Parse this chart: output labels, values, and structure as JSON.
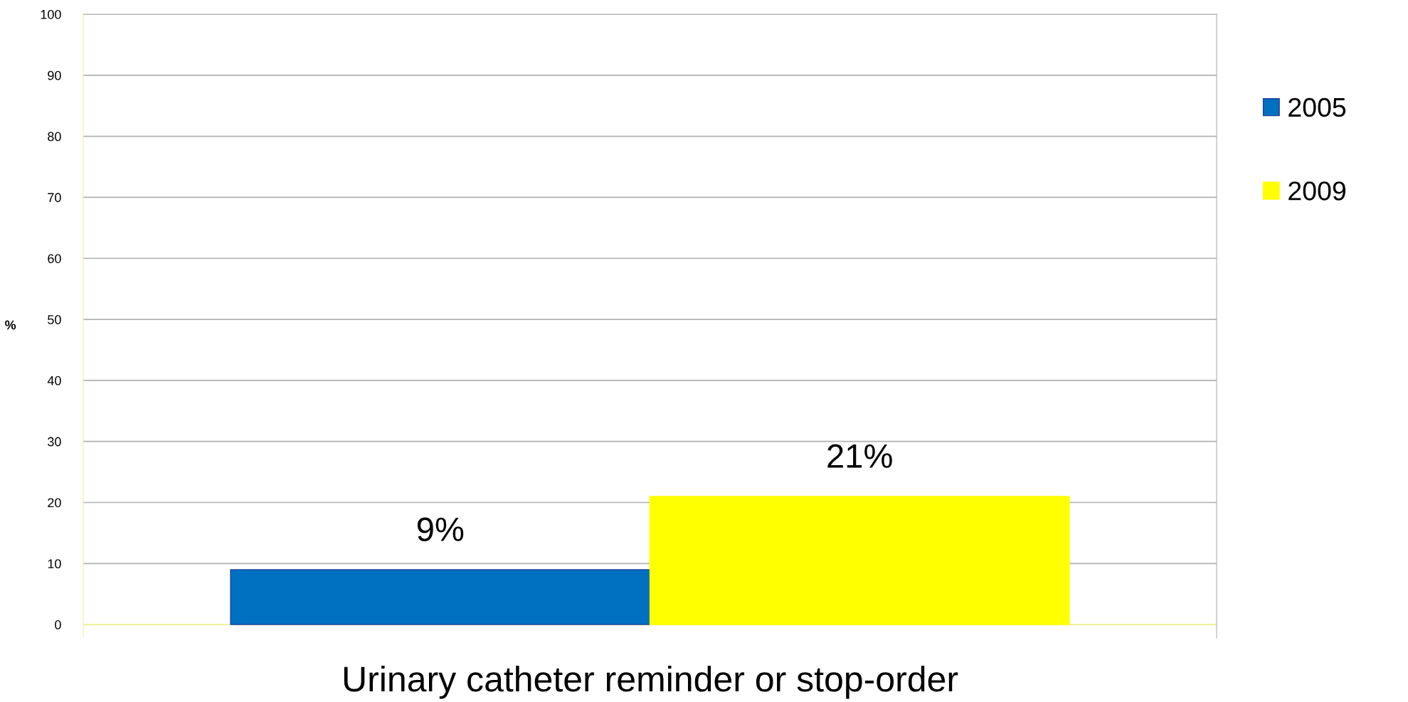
{
  "chart_data": {
    "type": "bar",
    "categories": [
      "Urinary catheter reminder or stop-order"
    ],
    "series": [
      {
        "name": "2005",
        "color": "#0070c0",
        "values": [
          9
        ],
        "value_labels": [
          "9%"
        ]
      },
      {
        "name": "2009",
        "color": "#ffff00",
        "values": [
          21
        ],
        "value_labels": [
          "21%"
        ]
      }
    ],
    "ylabel": "%",
    "ylim": [
      0,
      100
    ],
    "yticks": [
      0,
      10,
      20,
      30,
      40,
      50,
      60,
      70,
      80,
      90,
      100
    ],
    "grid": "y",
    "legend": "right"
  }
}
